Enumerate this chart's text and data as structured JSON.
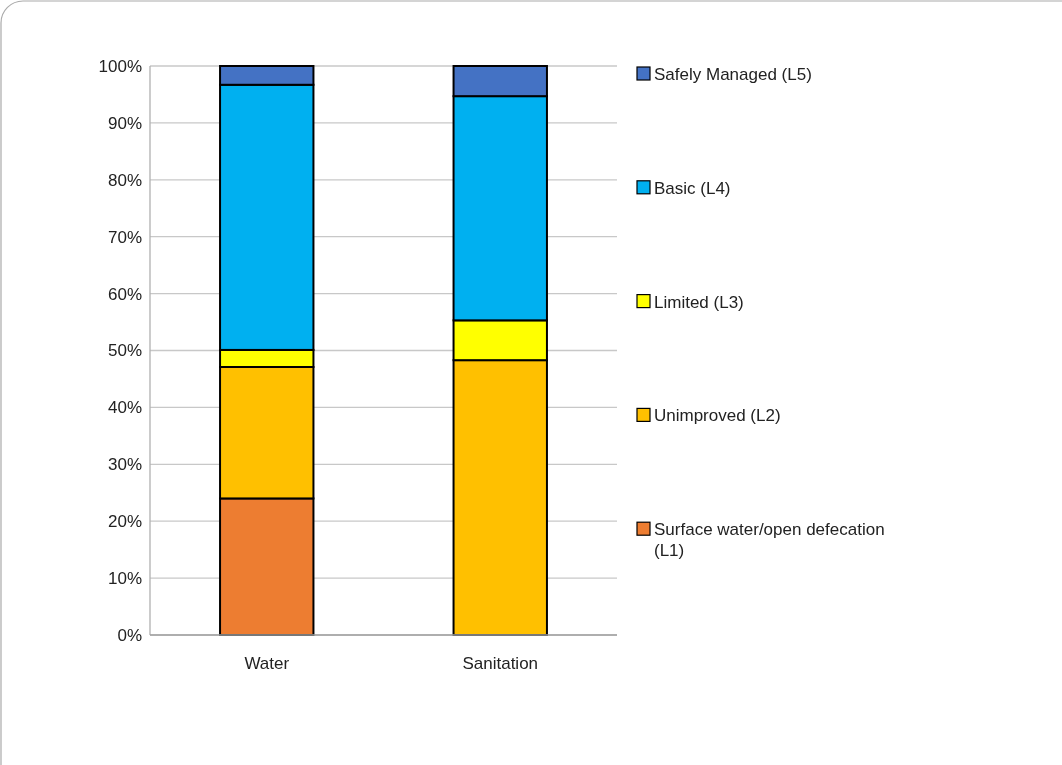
{
  "chart_data": {
    "type": "bar",
    "stacked": true,
    "categories": [
      "Water",
      "Sanitation"
    ],
    "series": [
      {
        "name": "Surface water/open defecation (L1)",
        "color": "#ed7d31",
        "values": [
          24,
          0
        ]
      },
      {
        "name": "Unimproved (L2)",
        "color": "#ffc000",
        "values": [
          23.1,
          48.3
        ]
      },
      {
        "name": "Limited (L3)",
        "color": "#ffff00",
        "values": [
          3,
          7
        ]
      },
      {
        "name": "Basic (L4)",
        "color": "#00b0f0",
        "values": [
          46.6,
          39.4
        ]
      },
      {
        "name": "Safely Managed (L5)",
        "color": "#4472c4",
        "values": [
          3.3,
          5.3
        ]
      }
    ],
    "ylim": [
      0,
      100
    ],
    "yticks": [
      {
        "value": 0,
        "label": "0%"
      },
      {
        "value": 10,
        "label": "10%"
      },
      {
        "value": 20,
        "label": "20%"
      },
      {
        "value": 30,
        "label": "30%"
      },
      {
        "value": 40,
        "label": "40%"
      },
      {
        "value": 50,
        "label": "50%"
      },
      {
        "value": 60,
        "label": "60%"
      },
      {
        "value": 70,
        "label": "70%"
      },
      {
        "value": 80,
        "label": "80%"
      },
      {
        "value": 90,
        "label": "90%"
      },
      {
        "value": 100,
        "label": "100%"
      }
    ],
    "grid": "y",
    "legend": "right"
  }
}
